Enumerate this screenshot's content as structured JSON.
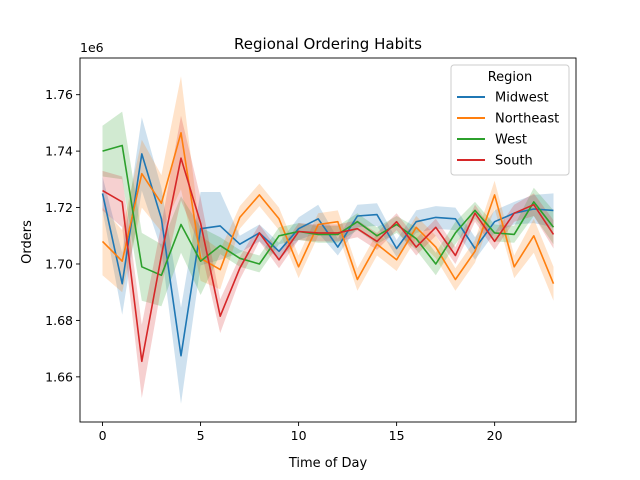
{
  "chart_data": {
    "type": "line",
    "title": "Regional Ordering Habits",
    "xlabel": "Time of Day",
    "ylabel": "Orders",
    "y_offset_label": "1e6",
    "xlim": [
      -1.15,
      24.15
    ],
    "ylim": [
      1644000,
      1773000
    ],
    "xticks": [
      0,
      5,
      10,
      15,
      20
    ],
    "yticks": [
      1660000,
      1680000,
      1700000,
      1720000,
      1740000,
      1760000
    ],
    "ytick_labels": [
      "1.66",
      "1.68",
      "1.70",
      "1.72",
      "1.74",
      "1.76"
    ],
    "grid": false,
    "legend": {
      "title": "Region",
      "placement": "top-right"
    },
    "x": [
      0,
      1,
      2,
      3,
      4,
      5,
      6,
      7,
      8,
      9,
      10,
      11,
      12,
      13,
      14,
      15,
      16,
      17,
      18,
      19,
      20,
      21,
      22,
      23
    ],
    "series": [
      {
        "name": "Midwest",
        "color": "#1f77b4",
        "values": [
          1725000,
          1693000,
          1739000,
          1716000,
          1667500,
          1712500,
          1713500,
          1707000,
          1711000,
          1704500,
          1712500,
          1716000,
          1706000,
          1717000,
          1717500,
          1705500,
          1715000,
          1716500,
          1716000,
          1705500,
          1715000,
          1718000,
          1719500,
          1719000
        ],
        "ci_halfwidth": [
          6000,
          11000,
          13000,
          11000,
          17000,
          13000,
          12000,
          3000,
          3000,
          3000,
          4000,
          5000,
          3000,
          4000,
          4000,
          3000,
          4000,
          4000,
          4000,
          4000,
          4000,
          4000,
          5000,
          6000
        ]
      },
      {
        "name": "Northeast",
        "color": "#ff7f0e",
        "values": [
          1708000,
          1701000,
          1732000,
          1721500,
          1746500,
          1702000,
          1698000,
          1716500,
          1724500,
          1716000,
          1699000,
          1714000,
          1715000,
          1694500,
          1707000,
          1701500,
          1713000,
          1706000,
          1694500,
          1704500,
          1724500,
          1699000,
          1710000,
          1693000
        ],
        "ci_halfwidth": [
          12000,
          11000,
          12000,
          10000,
          20000,
          8000,
          7000,
          4000,
          4000,
          4000,
          4000,
          4000,
          4000,
          4000,
          4000,
          4000,
          4000,
          4000,
          4000,
          4000,
          5000,
          4000,
          6000,
          6000
        ]
      },
      {
        "name": "West",
        "color": "#2ca02c",
        "values": [
          1740000,
          1742000,
          1699000,
          1696000,
          1714000,
          1701000,
          1706500,
          1702000,
          1700000,
          1710000,
          1711500,
          1710500,
          1710500,
          1715000,
          1710000,
          1714000,
          1709000,
          1700000,
          1711000,
          1719000,
          1711000,
          1710500,
          1722000,
          1713000
        ],
        "ci_halfwidth": [
          9000,
          12000,
          12000,
          11000,
          10000,
          12000,
          3000,
          3000,
          3000,
          3000,
          3000,
          3000,
          3000,
          3000,
          3000,
          3000,
          4000,
          4000,
          4000,
          3000,
          3000,
          3000,
          5000,
          6000
        ]
      },
      {
        "name": "South",
        "color": "#d62728",
        "values": [
          1726000,
          1722000,
          1665500,
          1703000,
          1737500,
          1714500,
          1681500,
          1698500,
          1711000,
          1701500,
          1711500,
          1711000,
          1711000,
          1712500,
          1708000,
          1715000,
          1706000,
          1713000,
          1703000,
          1718000,
          1708000,
          1718000,
          1721000,
          1710500
        ],
        "ci_halfwidth": [
          7000,
          9000,
          13000,
          11000,
          15000,
          9000,
          6000,
          4000,
          3000,
          3000,
          3000,
          3000,
          3000,
          3000,
          3000,
          3000,
          3000,
          3000,
          3000,
          3000,
          3000,
          3000,
          4000,
          5000
        ]
      }
    ]
  }
}
